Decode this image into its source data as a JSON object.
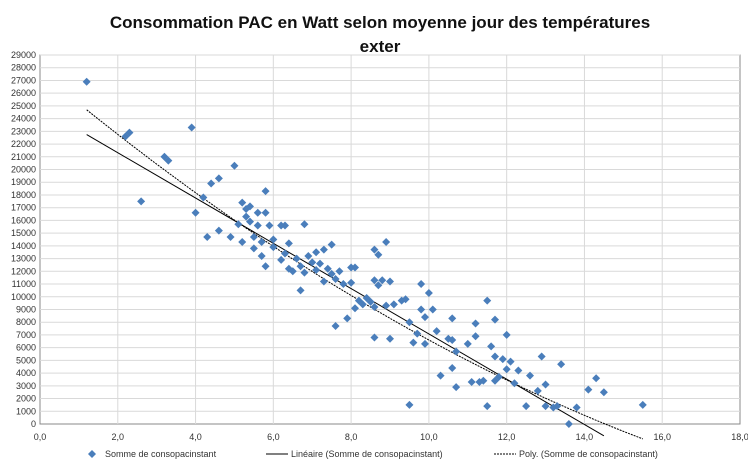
{
  "chart_data": {
    "type": "scatter",
    "title_line1": "Consommation PAC en Watt selon moyenne jour des températures",
    "title_line2": "exter",
    "xlim": [
      0,
      18
    ],
    "ylim": [
      0,
      29000
    ],
    "x_tick_labels": [
      "0,0",
      "2,0",
      "4,0",
      "6,0",
      "8,0",
      "10,0",
      "12,0",
      "14,0",
      "16,0",
      "18,0"
    ],
    "y_tick_labels": [
      "0",
      "1000",
      "2000",
      "3000",
      "4000",
      "5000",
      "6000",
      "7000",
      "8000",
      "9000",
      "10000",
      "11000",
      "12000",
      "13000",
      "14000",
      "15000",
      "16000",
      "17000",
      "18000",
      "19000",
      "20000",
      "21000",
      "22000",
      "23000",
      "24000",
      "25000",
      "26000",
      "27000",
      "28000",
      "29000"
    ],
    "grid": true,
    "legend_position": "bottom",
    "marker_color": "#4a7ebb",
    "series": [
      {
        "name": "Somme de consopacinstant",
        "points": [
          [
            1.2,
            26900
          ],
          [
            2.2,
            22600
          ],
          [
            2.3,
            22900
          ],
          [
            2.6,
            17500
          ],
          [
            3.2,
            21000
          ],
          [
            3.3,
            20700
          ],
          [
            3.9,
            23300
          ],
          [
            4.0,
            16600
          ],
          [
            4.2,
            17800
          ],
          [
            4.3,
            14700
          ],
          [
            4.4,
            18900
          ],
          [
            4.6,
            19300
          ],
          [
            4.6,
            15200
          ],
          [
            4.9,
            14700
          ],
          [
            5.0,
            20300
          ],
          [
            5.1,
            15700
          ],
          [
            5.2,
            17400
          ],
          [
            5.2,
            14300
          ],
          [
            5.3,
            16900
          ],
          [
            5.3,
            16300
          ],
          [
            5.4,
            17100
          ],
          [
            5.4,
            15900
          ],
          [
            5.5,
            14700
          ],
          [
            5.5,
            13800
          ],
          [
            5.6,
            16600
          ],
          [
            5.6,
            15600
          ],
          [
            5.7,
            14300
          ],
          [
            5.7,
            13200
          ],
          [
            5.8,
            18300
          ],
          [
            5.8,
            16600
          ],
          [
            5.8,
            12400
          ],
          [
            5.9,
            15600
          ],
          [
            6.0,
            14500
          ],
          [
            6.0,
            13900
          ],
          [
            6.2,
            15600
          ],
          [
            6.2,
            12900
          ],
          [
            6.3,
            15600
          ],
          [
            6.3,
            13400
          ],
          [
            6.4,
            12200
          ],
          [
            6.4,
            14200
          ],
          [
            6.5,
            12000
          ],
          [
            6.6,
            13000
          ],
          [
            6.7,
            12400
          ],
          [
            6.7,
            10500
          ],
          [
            6.8,
            15700
          ],
          [
            6.8,
            11900
          ],
          [
            6.9,
            13200
          ],
          [
            7.0,
            12700
          ],
          [
            7.1,
            13500
          ],
          [
            7.1,
            12100
          ],
          [
            7.2,
            12600
          ],
          [
            7.3,
            13700
          ],
          [
            7.3,
            11200
          ],
          [
            7.4,
            12200
          ],
          [
            7.5,
            14100
          ],
          [
            7.5,
            11800
          ],
          [
            7.6,
            11400
          ],
          [
            7.6,
            7700
          ],
          [
            7.7,
            12000
          ],
          [
            7.8,
            11000
          ],
          [
            7.9,
            8300
          ],
          [
            8.0,
            12300
          ],
          [
            8.0,
            11100
          ],
          [
            8.1,
            12300
          ],
          [
            8.1,
            9100
          ],
          [
            8.2,
            9700
          ],
          [
            8.3,
            9400
          ],
          [
            8.4,
            9900
          ],
          [
            8.5,
            9600
          ],
          [
            8.6,
            9200
          ],
          [
            8.6,
            13700
          ],
          [
            8.6,
            11300
          ],
          [
            8.6,
            6800
          ],
          [
            8.7,
            13300
          ],
          [
            8.7,
            10900
          ],
          [
            8.8,
            11300
          ],
          [
            8.9,
            14300
          ],
          [
            8.9,
            9300
          ],
          [
            9.0,
            11200
          ],
          [
            9.0,
            6700
          ],
          [
            9.1,
            9400
          ],
          [
            9.3,
            9700
          ],
          [
            9.4,
            9800
          ],
          [
            9.5,
            8000
          ],
          [
            9.5,
            1500
          ],
          [
            9.6,
            6400
          ],
          [
            9.7,
            7100
          ],
          [
            9.8,
            11000
          ],
          [
            9.8,
            9000
          ],
          [
            9.9,
            8400
          ],
          [
            9.9,
            6300
          ],
          [
            10.0,
            10300
          ],
          [
            10.1,
            9000
          ],
          [
            10.2,
            7300
          ],
          [
            10.3,
            3800
          ],
          [
            10.5,
            6700
          ],
          [
            10.6,
            8300
          ],
          [
            10.6,
            4400
          ],
          [
            10.6,
            6600
          ],
          [
            10.7,
            5700
          ],
          [
            10.7,
            2900
          ],
          [
            11.0,
            6300
          ],
          [
            11.1,
            3300
          ],
          [
            11.2,
            7900
          ],
          [
            11.2,
            6900
          ],
          [
            11.3,
            3300
          ],
          [
            11.4,
            3400
          ],
          [
            11.5,
            9700
          ],
          [
            11.5,
            1400
          ],
          [
            11.6,
            6100
          ],
          [
            11.7,
            8200
          ],
          [
            11.7,
            5300
          ],
          [
            11.7,
            3400
          ],
          [
            11.8,
            3700
          ],
          [
            11.9,
            5100
          ],
          [
            12.0,
            7000
          ],
          [
            12.0,
            4300
          ],
          [
            12.1,
            4900
          ],
          [
            12.2,
            3200
          ],
          [
            12.3,
            4200
          ],
          [
            12.5,
            1400
          ],
          [
            12.6,
            3800
          ],
          [
            12.8,
            2600
          ],
          [
            12.9,
            5300
          ],
          [
            13.0,
            3100
          ],
          [
            13.0,
            1400
          ],
          [
            13.2,
            1300
          ],
          [
            13.3,
            1400
          ],
          [
            13.4,
            4700
          ],
          [
            13.6,
            0
          ],
          [
            13.8,
            1300
          ],
          [
            14.1,
            2700
          ],
          [
            14.3,
            3600
          ],
          [
            14.5,
            2500
          ],
          [
            15.5,
            1500
          ]
        ]
      },
      {
        "name": "Linéaire (Somme de consopacinstant)",
        "line_type": "linear",
        "coefficients": [
          -1780,
          24880
        ]
      },
      {
        "name": "Poly. (Somme de consopacinstant)",
        "line_type": "polynomial",
        "coefficients": [
          45,
          -2560,
          27700
        ]
      }
    ]
  }
}
